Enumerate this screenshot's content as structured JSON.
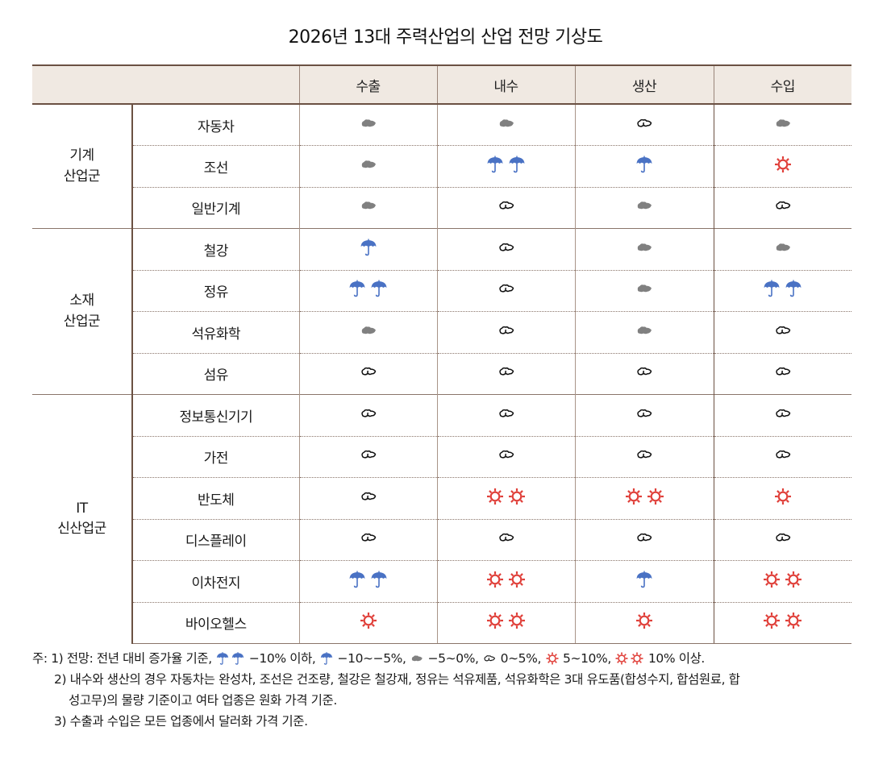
{
  "title": "2026년 13대 주력산업의 산업 전망 기상도",
  "table": {
    "columns": [
      "수출",
      "내수",
      "생산",
      "수입"
    ],
    "groups": [
      {
        "label_line1": "기계",
        "label_line2": "산업군",
        "rows": [
          {
            "industry": "자동차",
            "values": [
              "cloud",
              "cloud",
              "partly",
              "cloud"
            ]
          },
          {
            "industry": "조선",
            "values": [
              "cloud",
              "rain2",
              "rain1",
              "sun1"
            ]
          },
          {
            "industry": "일반기계",
            "values": [
              "cloud",
              "partly",
              "cloud",
              "partly"
            ]
          }
        ]
      },
      {
        "label_line1": "소재",
        "label_line2": "산업군",
        "rows": [
          {
            "industry": "철강",
            "values": [
              "rain1",
              "partly",
              "cloud",
              "cloud"
            ]
          },
          {
            "industry": "정유",
            "values": [
              "rain2",
              "partly",
              "cloud",
              "rain2"
            ]
          },
          {
            "industry": "석유화학",
            "values": [
              "cloud",
              "partly",
              "cloud",
              "partly"
            ]
          },
          {
            "industry": "섬유",
            "values": [
              "partly",
              "partly",
              "partly",
              "partly"
            ]
          }
        ]
      },
      {
        "label_line1": "IT",
        "label_line2": "신산업군",
        "rows": [
          {
            "industry": "정보통신기기",
            "values": [
              "partly",
              "partly",
              "partly",
              "partly"
            ]
          },
          {
            "industry": "가전",
            "values": [
              "partly",
              "partly",
              "partly",
              "partly"
            ]
          },
          {
            "industry": "반도체",
            "values": [
              "partly",
              "sun2",
              "sun2",
              "sun1"
            ]
          },
          {
            "industry": "디스플레이",
            "values": [
              "partly",
              "partly",
              "partly",
              "partly"
            ]
          },
          {
            "industry": "이차전지",
            "values": [
              "rain2",
              "sun2",
              "rain1",
              "sun2"
            ]
          },
          {
            "industry": "바이오헬스",
            "values": [
              "sun1",
              "sun2",
              "sun1",
              "sun2"
            ]
          }
        ]
      }
    ]
  },
  "icons": {
    "rain2": {
      "name": "two-umbrellas-icon",
      "count": 2,
      "shape": "umbrella",
      "color": "#4a72c4"
    },
    "rain1": {
      "name": "umbrella-icon",
      "count": 1,
      "shape": "umbrella",
      "color": "#4a72c4"
    },
    "cloud": {
      "name": "dark-cloud-icon",
      "count": 1,
      "shape": "cloud-filled",
      "color": "#808080"
    },
    "partly": {
      "name": "outline-cloud-icon",
      "count": 1,
      "shape": "cloud-outline",
      "color": "#111111"
    },
    "sun1": {
      "name": "sun-icon",
      "count": 1,
      "shape": "sun",
      "color": "#e0403a"
    },
    "sun2": {
      "name": "two-suns-icon",
      "count": 2,
      "shape": "sun",
      "color": "#e0403a"
    }
  },
  "notes": {
    "note1_prefix": "주: 1) 전망: 전년 대비 증가율 기준,",
    "legend": [
      {
        "icon": "rain2",
        "text": "−10% 이하,"
      },
      {
        "icon": "rain1",
        "text": "−10∼−5%,"
      },
      {
        "icon": "cloud",
        "text": "−5∼0%,"
      },
      {
        "icon": "partly",
        "text": "0∼5%,"
      },
      {
        "icon": "sun1",
        "text": "5∼10%,"
      },
      {
        "icon": "sun2",
        "text": "10% 이상."
      }
    ],
    "note2_line1": "2) 내수와 생산의 경우 자동차는 완성차, 조선은 건조량, 철강은 철강재, 정유는 석유제품, 석유화학은 3대 유도품(합성수지, 합섬원료, 합",
    "note2_line2": "성고무)의 물량 기준이고 여타 업종은 원화 가격 기준.",
    "note3": "3) 수출과 수입은 모든 업종에서 달러화 가격 기준."
  },
  "colors": {
    "header_bg": "#f0e9e2",
    "border_dark": "#6b5143",
    "rain": "#4a72c4",
    "sun": "#e0403a",
    "cloud_dark": "#808080"
  }
}
